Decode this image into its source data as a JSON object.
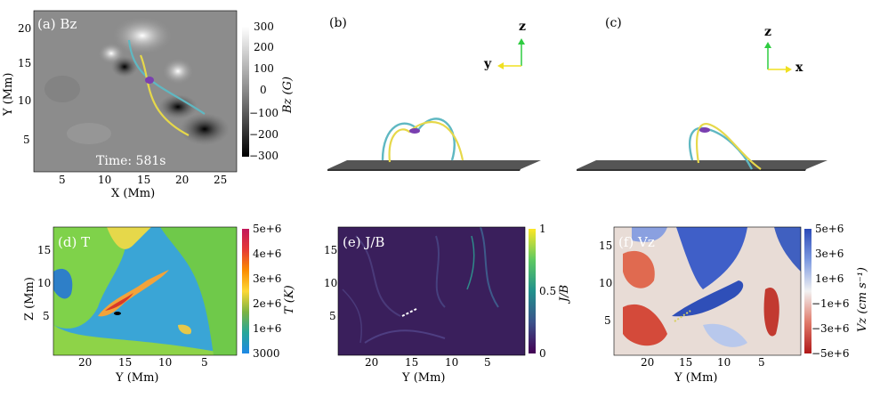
{
  "panels": {
    "a": {
      "label": "(a) Bz",
      "time": "Time: 581s",
      "xlabel": "X (Mm)",
      "ylabel": "Y (Mm)",
      "xticks": [
        "5",
        "10",
        "15",
        "20",
        "25"
      ],
      "yticks": [
        "20",
        "15",
        "10",
        "5"
      ],
      "cbar_label": "Bz (G)",
      "cbar_ticks": [
        "300",
        "200",
        "100",
        "0",
        "−100",
        "−200",
        "−300"
      ]
    },
    "b": {
      "label": "(b)",
      "axis_up": "z",
      "axis_side": "y"
    },
    "c": {
      "label": "(c)",
      "axis_up": "z",
      "axis_side": "x"
    },
    "d": {
      "label": "(d) T",
      "xlabel": "Y (Mm)",
      "ylabel": "Z (Mm)",
      "xticks": [
        "20",
        "15",
        "10",
        "5"
      ],
      "yticks": [
        "15",
        "10",
        "5"
      ],
      "cbar_label": "T (K)",
      "cbar_ticks": [
        "5e+6",
        "4e+6",
        "3e+6",
        "2e+6",
        "1e+6",
        "3000"
      ]
    },
    "e": {
      "label": "(e) J/B",
      "xlabel": "Y (Mm)",
      "xticks": [
        "20",
        "15",
        "10",
        "5"
      ],
      "yticks": [
        "15",
        "10",
        "5"
      ],
      "cbar_label": "J/B",
      "cbar_ticks": [
        "1",
        "0.5",
        "0"
      ]
    },
    "f": {
      "label": "(f) Vz",
      "xlabel": "Y (Mm)",
      "xticks": [
        "20",
        "15",
        "10",
        "5"
      ],
      "yticks": [
        "15",
        "10",
        "5"
      ],
      "cbar_label": "Vz (cm s⁻¹)",
      "cbar_ticks": [
        "5e+6",
        "3e+6",
        "1e+6",
        "−1e+6",
        "−3e+6",
        "−5e+6"
      ]
    }
  },
  "colors": {
    "loop_cyan": "#5fb8c2",
    "loop_yellow": "#e6d84a",
    "purple": "#7a3fb0",
    "axis_green": "#2ecc40",
    "axis_yellow": "#f0e020"
  }
}
